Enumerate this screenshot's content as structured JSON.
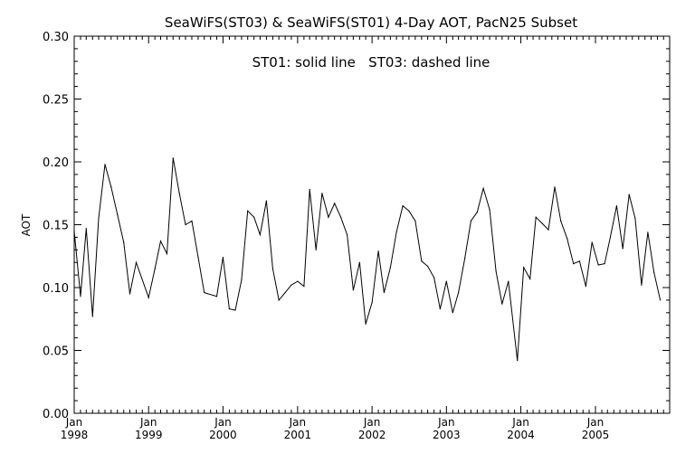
{
  "chart_data": {
    "type": "line",
    "title": "SeaWiFS(ST03) & SeaWiFS(ST01) 4-Day AOT, PacN25 Subset",
    "annotation": "ST01: solid line   ST03: dashed line",
    "xlabel": "",
    "ylabel": "AOT",
    "ylim": [
      0.0,
      0.3
    ],
    "yticks": [
      "0.00",
      "0.05",
      "0.10",
      "0.15",
      "0.20",
      "0.25",
      "0.30"
    ],
    "ytick_values": [
      0.0,
      0.05,
      0.1,
      0.15,
      0.2,
      0.25,
      0.3
    ],
    "xlim": [
      "1998-01-01",
      "2005-12-31"
    ],
    "xticks": [
      {
        "date": "1998-01-01",
        "month": "Jan",
        "year": "1998"
      },
      {
        "date": "1999-01-01",
        "month": "Jan",
        "year": "1999"
      },
      {
        "date": "2000-01-01",
        "month": "Jan",
        "year": "2000"
      },
      {
        "date": "2001-01-01",
        "month": "Jan",
        "year": "2001"
      },
      {
        "date": "2002-01-01",
        "month": "Jan",
        "year": "2002"
      },
      {
        "date": "2003-01-01",
        "month": "Jan",
        "year": "2003"
      },
      {
        "date": "2004-01-01",
        "month": "Jan",
        "year": "2004"
      },
      {
        "date": "2005-01-01",
        "month": "Jan",
        "year": "2005"
      }
    ],
    "grid": false,
    "series": [
      {
        "name": "ST01",
        "style": "solid",
        "color": "#000000",
        "points": [
          [
            "1998-01-01",
            0.145
          ],
          [
            "1998-02-01",
            0.093
          ],
          [
            "1998-03-01",
            0.147
          ],
          [
            "1998-04-01",
            0.077
          ],
          [
            "1998-05-01",
            0.155
          ],
          [
            "1998-06-01",
            0.198
          ],
          [
            "1998-07-01",
            0.18
          ],
          [
            "1998-08-01",
            0.158
          ],
          [
            "1998-09-01",
            0.136
          ],
          [
            "1998-10-01",
            0.095
          ],
          [
            "1998-11-01",
            0.12
          ],
          [
            "1999-01-01",
            0.092
          ],
          [
            "1999-02-01",
            0.115
          ],
          [
            "1999-03-01",
            0.137
          ],
          [
            "1999-04-01",
            0.127
          ],
          [
            "1999-05-01",
            0.203
          ],
          [
            "1999-06-01",
            0.175
          ],
          [
            "1999-07-01",
            0.15
          ],
          [
            "1999-08-01",
            0.153
          ],
          [
            "1999-09-01",
            0.124
          ],
          [
            "1999-10-01",
            0.096
          ],
          [
            "1999-12-01",
            0.093
          ],
          [
            "2000-01-01",
            0.124
          ],
          [
            "2000-02-01",
            0.083
          ],
          [
            "2000-03-01",
            0.082
          ],
          [
            "2000-04-01",
            0.106
          ],
          [
            "2000-05-01",
            0.161
          ],
          [
            "2000-06-01",
            0.156
          ],
          [
            "2000-07-01",
            0.142
          ],
          [
            "2000-08-01",
            0.169
          ],
          [
            "2000-09-01",
            0.115
          ],
          [
            "2000-10-01",
            0.09
          ],
          [
            "2000-11-01",
            0.096
          ],
          [
            "2000-12-01",
            0.102
          ],
          [
            "2001-01-01",
            0.105
          ],
          [
            "2001-02-01",
            0.101
          ],
          [
            "2001-03-01",
            0.178
          ],
          [
            "2001-04-01",
            0.13
          ],
          [
            "2001-05-01",
            0.175
          ],
          [
            "2001-06-01",
            0.156
          ],
          [
            "2001-07-01",
            0.167
          ],
          [
            "2001-08-01",
            0.156
          ],
          [
            "2001-09-01",
            0.142
          ],
          [
            "2001-10-01",
            0.098
          ],
          [
            "2001-11-01",
            0.12
          ],
          [
            "2001-12-01",
            0.071
          ],
          [
            "2002-01-01",
            0.088
          ],
          [
            "2002-02-01",
            0.129
          ],
          [
            "2002-03-01",
            0.096
          ],
          [
            "2002-04-01",
            0.116
          ],
          [
            "2002-05-01",
            0.144
          ],
          [
            "2002-06-01",
            0.165
          ],
          [
            "2002-07-01",
            0.161
          ],
          [
            "2002-08-01",
            0.153
          ],
          [
            "2002-09-01",
            0.121
          ],
          [
            "2002-10-01",
            0.117
          ],
          [
            "2002-11-01",
            0.108
          ],
          [
            "2002-12-01",
            0.083
          ],
          [
            "2003-01-01",
            0.105
          ],
          [
            "2003-02-01",
            0.08
          ],
          [
            "2003-03-01",
            0.096
          ],
          [
            "2003-04-01",
            0.123
          ],
          [
            "2003-05-01",
            0.153
          ],
          [
            "2003-06-01",
            0.16
          ],
          [
            "2003-07-01",
            0.179
          ],
          [
            "2003-08-01",
            0.162
          ],
          [
            "2003-09-01",
            0.113
          ],
          [
            "2003-10-01",
            0.087
          ],
          [
            "2003-11-01",
            0.105
          ],
          [
            "2003-12-15",
            0.042
          ],
          [
            "2004-01-15",
            0.116
          ],
          [
            "2004-02-15",
            0.107
          ],
          [
            "2004-03-15",
            0.156
          ],
          [
            "2004-04-15",
            0.151
          ],
          [
            "2004-05-15",
            0.146
          ],
          [
            "2004-06-15",
            0.18
          ],
          [
            "2004-07-15",
            0.153
          ],
          [
            "2004-08-15",
            0.139
          ],
          [
            "2004-09-15",
            0.119
          ],
          [
            "2004-10-15",
            0.121
          ],
          [
            "2004-11-15",
            0.101
          ],
          [
            "2004-12-15",
            0.136
          ],
          [
            "2005-01-15",
            0.118
          ],
          [
            "2005-02-15",
            0.119
          ],
          [
            "2005-03-15",
            0.14
          ],
          [
            "2005-04-15",
            0.165
          ],
          [
            "2005-05-15",
            0.131
          ],
          [
            "2005-06-15",
            0.174
          ],
          [
            "2005-07-15",
            0.155
          ],
          [
            "2005-08-15",
            0.102
          ],
          [
            "2005-09-15",
            0.144
          ],
          [
            "2005-10-15",
            0.112
          ],
          [
            "2005-11-15",
            0.09
          ]
        ]
      }
    ]
  }
}
